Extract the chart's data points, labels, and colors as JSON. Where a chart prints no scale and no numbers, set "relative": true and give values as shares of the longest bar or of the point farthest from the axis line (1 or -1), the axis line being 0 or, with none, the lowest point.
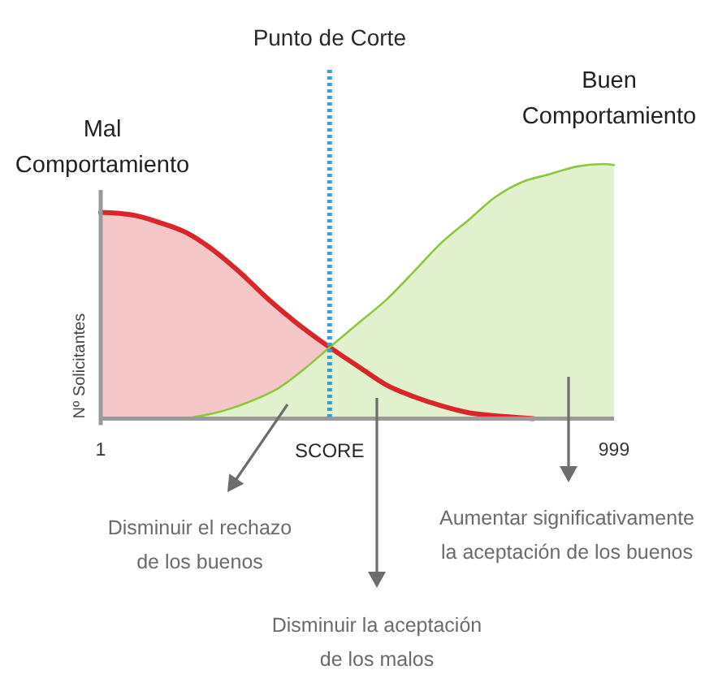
{
  "chart_data": {
    "type": "area",
    "relative": true,
    "xlabel": "SCORE",
    "ylabel": "Nº Solicitantes",
    "xlim": [
      1,
      999
    ],
    "xticks": [
      1,
      999
    ],
    "tick_labels": "x",
    "legend": false,
    "series": [
      {
        "name": "Mal Comportamiento",
        "color": "#d8262a",
        "x": [
          1,
          63,
          116,
          168,
          221,
          274,
          326,
          379,
          446,
          505,
          558,
          611,
          663,
          716,
          768,
          842
        ],
        "values": [
          0.81,
          0.8,
          0.77,
          0.73,
          0.66,
          0.57,
          0.47,
          0.38,
          0.28,
          0.2,
          0.13,
          0.085,
          0.05,
          0.023,
          0.011,
          0
        ]
      },
      {
        "name": "Buen Comportamiento",
        "color": "#8dc63f",
        "x": [
          168,
          242,
          295,
          347,
          400,
          446,
          505,
          558,
          611,
          663,
          716,
          768,
          821,
          874,
          926,
          979,
          999
        ],
        "values": [
          0,
          0.032,
          0.07,
          0.12,
          0.2,
          0.28,
          0.38,
          0.47,
          0.58,
          0.69,
          0.78,
          0.87,
          0.93,
          0.96,
          0.99,
          1,
          0.996
        ]
      }
    ],
    "ref_lines": [
      {
        "axis": "x",
        "value": 446,
        "label": "Punto de Corte",
        "color": "#3b9fd1",
        "line_style": "dotted"
      }
    ],
    "annotations": [
      "Disminuir el rechazo de los buenos",
      "Disminuir la aceptación de los malos",
      "Aumentar significativamente la aceptación de los buenos"
    ]
  }
}
